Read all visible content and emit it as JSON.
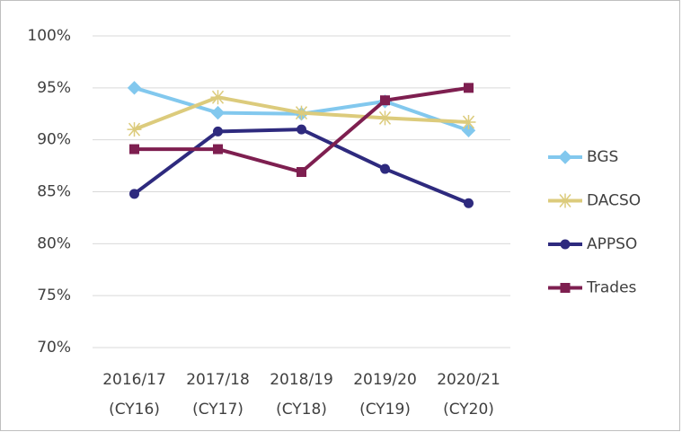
{
  "chart_data": {
    "type": "line",
    "categories": [
      "2016/17 (CY16)",
      "2017/18 (CY17)",
      "2018/19 (CY18)",
      "2019/20 (CY19)",
      "2020/21 (CY20)"
    ],
    "series": [
      {
        "name": "BGS",
        "color": "#82c8ee",
        "marker": "diamond",
        "values": [
          95.0,
          92.6,
          92.5,
          93.7,
          90.9
        ]
      },
      {
        "name": "DACSO",
        "color": "#dccb7c",
        "marker": "star",
        "values": [
          91.0,
          94.1,
          92.6,
          92.1,
          91.7
        ]
      },
      {
        "name": "APPSO",
        "color": "#2e2a7e",
        "marker": "circle",
        "values": [
          84.8,
          90.8,
          91.0,
          87.2,
          83.9
        ]
      },
      {
        "name": "Trades",
        "color": "#7e1f50",
        "marker": "square",
        "values": [
          89.1,
          89.1,
          86.9,
          93.8,
          95.0
        ]
      }
    ],
    "ylim": [
      70,
      100
    ],
    "yticks": [
      {
        "value": 70,
        "label": "70%"
      },
      {
        "value": 75,
        "label": "75%"
      },
      {
        "value": 80,
        "label": "80%"
      },
      {
        "value": 85,
        "label": "85%"
      },
      {
        "value": 90,
        "label": "90%"
      },
      {
        "value": 95,
        "label": "95%"
      },
      {
        "value": 100,
        "label": "100%"
      }
    ],
    "grid": true,
    "legend": "right"
  }
}
